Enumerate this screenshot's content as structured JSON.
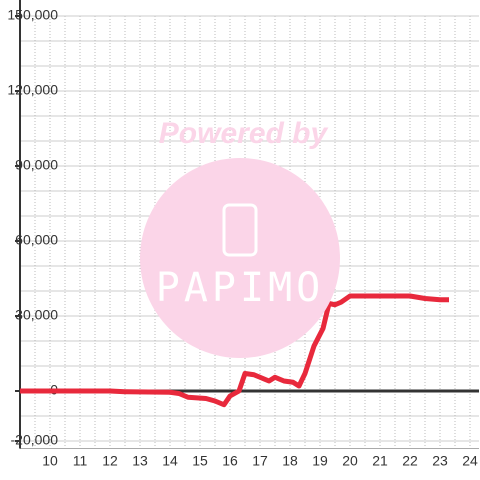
{
  "chart_data": {
    "type": "line",
    "x": [
      9,
      12,
      12.5,
      14,
      14.3,
      14.6,
      15.2,
      15.5,
      15.8,
      16,
      16.3,
      16.5,
      16.8,
      17,
      17.3,
      17.5,
      17.8,
      18.1,
      18.3,
      18.5,
      18.8,
      19.1,
      19.3,
      19.5,
      19.7,
      20,
      21,
      22,
      22.5,
      23,
      23.3
    ],
    "series": [
      {
        "color": "#e8293c",
        "values": [
          0,
          0,
          -300,
          -500,
          -1000,
          -2500,
          -3000,
          -4000,
          -5500,
          -2000,
          0,
          7000,
          6500,
          5500,
          4000,
          5500,
          4000,
          3500,
          2000,
          7000,
          18000,
          25000,
          35000,
          34500,
          35500,
          38000,
          38000,
          38000,
          37000,
          36500,
          36500
        ]
      }
    ],
    "xlim": [
      9,
      24.3
    ],
    "xticks": [
      10,
      11,
      12,
      13,
      14,
      15,
      16,
      17,
      18,
      19,
      20,
      21,
      22,
      23,
      24
    ],
    "x_minor_ticks": [
      9.5,
      10.5,
      11.5,
      12.5,
      13.5,
      14.5,
      15.5,
      16.5,
      17.5,
      18.5,
      19.5,
      20.5,
      21.5,
      22.5,
      23.5
    ],
    "ylim": [
      -23000,
      150000
    ],
    "yticks": [
      {
        "value": 150000,
        "label": "150,000"
      },
      {
        "value": 120000,
        "label": "120,000"
      },
      {
        "value": 90000,
        "label": "90,000"
      },
      {
        "value": 60000,
        "label": "60,000"
      },
      {
        "value": 30000,
        "label": "30,000"
      },
      0,
      {
        "value": -20000,
        "label": "-20,000"
      }
    ],
    "y_minor_ticks": [
      -10000,
      10000,
      20000,
      40000,
      50000,
      70000,
      80000,
      100000,
      110000,
      130000,
      140000
    ],
    "grid": true,
    "watermark": {
      "text": "Powered by",
      "logo": "PAPIMO"
    }
  }
}
